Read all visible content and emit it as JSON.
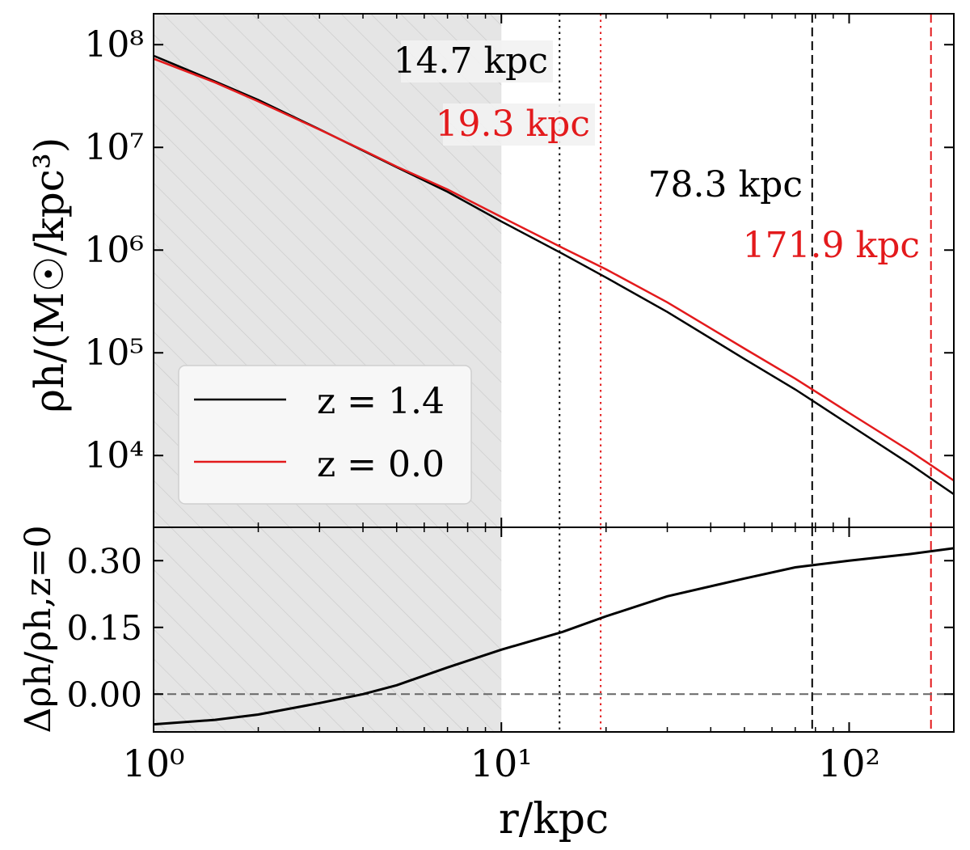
{
  "chart_data": [
    {
      "type": "line",
      "xscale": "log",
      "yscale": "log",
      "xlim": [
        1,
        200
      ],
      "ylim": [
        2000,
        200000000
      ],
      "ylabel": "ρh/(M☉/kpc³)",
      "yticks": [
        {
          "value": 10000,
          "label": "10⁴"
        },
        {
          "value": 100000,
          "label": "10⁵"
        },
        {
          "value": 1000000,
          "label": "10⁶"
        },
        {
          "value": 10000000,
          "label": "10⁷"
        },
        {
          "value": 100000000,
          "label": "10⁸"
        }
      ],
      "shaded_region": {
        "x": [
          1,
          10
        ],
        "color": "#e5e5e5",
        "hatch": "diagonal"
      },
      "series": [
        {
          "name": "z = 1.4",
          "color": "#000000",
          "x": [
            1,
            1.5,
            2,
            3,
            4,
            5,
            7,
            10,
            15,
            20,
            30,
            50,
            70,
            100,
            150,
            200
          ],
          "y": [
            78000000,
            44000000,
            29000000,
            15000000,
            9300000,
            6400000,
            3700000,
            1900000,
            920000,
            540000,
            250000,
            87000,
            44000,
            20000,
            8200,
            4200
          ]
        },
        {
          "name": "z = 0.0",
          "color": "#e31a1c",
          "x": [
            1,
            1.5,
            2,
            3,
            4,
            5,
            7,
            10,
            15,
            20,
            30,
            50,
            70,
            100,
            150,
            200
          ],
          "y": [
            73000000,
            43000000,
            28000000,
            14900000,
            9400000,
            6500000,
            3900000,
            2100000,
            1050000,
            650000,
            310000,
            110000,
            56000,
            26000,
            11000,
            5700
          ]
        }
      ],
      "vlines": [
        {
          "x": 14.7,
          "color": "#000000",
          "style": "dotted",
          "label": "14.7 kpc"
        },
        {
          "x": 19.3,
          "color": "#e31a1c",
          "style": "dotted",
          "label": "19.3 kpc"
        },
        {
          "x": 78.3,
          "color": "#000000",
          "style": "dashed",
          "label": "78.3 kpc"
        },
        {
          "x": 171.9,
          "color": "#e31a1c",
          "style": "dashed",
          "label": "171.9 kpc"
        }
      ],
      "legend": {
        "placement": "lower-left",
        "entries": [
          {
            "label": "z = 1.4",
            "color": "#000000"
          },
          {
            "label": "z = 0.0",
            "color": "#e31a1c"
          }
        ]
      }
    },
    {
      "type": "line",
      "xscale": "log",
      "xlim": [
        1,
        200
      ],
      "ylim": [
        -0.085,
        0.375
      ],
      "xlabel": "r/kpc",
      "ylabel": "Δρh/ρh,z=0",
      "xticks": [
        {
          "value": 1,
          "label": "10⁰"
        },
        {
          "value": 10,
          "label": "10¹"
        },
        {
          "value": 100,
          "label": "10²"
        }
      ],
      "yticks": [
        {
          "value": 0.0,
          "label": "0.00"
        },
        {
          "value": 0.15,
          "label": "0.15"
        },
        {
          "value": 0.3,
          "label": "0.30"
        }
      ],
      "hline": {
        "y": 0.0,
        "color": "#666666",
        "style": "dashed"
      },
      "series": [
        {
          "color": "#000000",
          "x": [
            1,
            1.5,
            2,
            3,
            4,
            5,
            7,
            10,
            15,
            20,
            30,
            50,
            70,
            100,
            150,
            200
          ],
          "y": [
            -0.068,
            -0.058,
            -0.046,
            -0.02,
            0.0,
            0.02,
            0.06,
            0.1,
            0.14,
            0.175,
            0.22,
            0.26,
            0.285,
            0.3,
            0.315,
            0.328
          ]
        }
      ]
    }
  ]
}
